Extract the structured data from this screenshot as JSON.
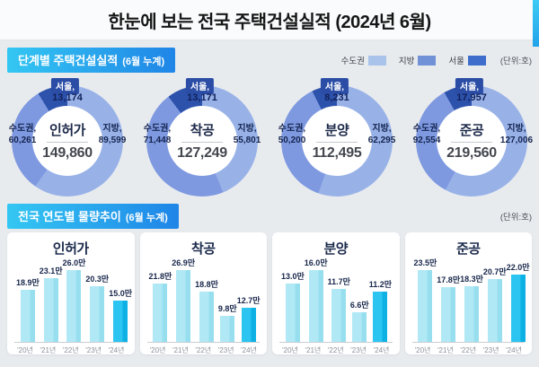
{
  "page_title": "한눈에 보는 전국 주택건설실적 (2024년 6월)",
  "section1": {
    "badge": "단계별 주택건설실적",
    "badge_suffix": "(6월 누계)",
    "unit_note": "(단위:호)"
  },
  "section2": {
    "badge": "전국 연도별 물량추이",
    "badge_suffix": "(6월 누계)",
    "unit_note": "(단위:호)"
  },
  "legend": {
    "items": [
      {
        "label": "수도권",
        "color": "#a9c3ea"
      },
      {
        "label": "지방",
        "color": "#7192d6"
      },
      {
        "label": "서울",
        "color": "#3e6dcb"
      }
    ]
  },
  "colors": {
    "arc_jibang": "#98b2e8",
    "arc_sudogwon": "#7e99e0",
    "arc_seoul": "#2d52ab",
    "bar": "linear-gradient(90deg,#b0e9f5 0 66%,#97dfef 66% 100%)",
    "bar_highlight": "linear-gradient(90deg,#2cc4f0 0 66%,#0db1e4 66% 100%)"
  },
  "chart_data": [
    {
      "type": "pie",
      "title": "인허가",
      "total": 149860,
      "slices": [
        {
          "label": "서울",
          "value": 13174
        },
        {
          "label": "수도권",
          "value": 60261
        },
        {
          "label": "지방",
          "value": 89599
        }
      ]
    },
    {
      "type": "pie",
      "title": "착공",
      "total": 127249,
      "slices": [
        {
          "label": "서울",
          "value": 13171
        },
        {
          "label": "수도권",
          "value": 71448
        },
        {
          "label": "지방",
          "value": 55801
        }
      ]
    },
    {
      "type": "pie",
      "title": "분양",
      "total": 112495,
      "slices": [
        {
          "label": "서울",
          "value": 8231
        },
        {
          "label": "수도권",
          "value": 50200
        },
        {
          "label": "지방",
          "value": 62295
        }
      ]
    },
    {
      "type": "pie",
      "title": "준공",
      "total": 219560,
      "slices": [
        {
          "label": "서울",
          "value": 17957
        },
        {
          "label": "수도권",
          "value": 92554
        },
        {
          "label": "지방",
          "value": 127006
        }
      ]
    },
    {
      "type": "bar",
      "title": "인허가",
      "unit": "만",
      "highlight_index": 4,
      "categories": [
        "'20년",
        "'21년",
        "'22년",
        "'23년",
        "'24년"
      ],
      "values": [
        18.9,
        23.1,
        26.0,
        20.3,
        15.0
      ]
    },
    {
      "type": "bar",
      "title": "착공",
      "unit": "만",
      "highlight_index": 4,
      "categories": [
        "'20년",
        "'21년",
        "'22년",
        "'23년",
        "'24년"
      ],
      "values": [
        21.8,
        26.9,
        18.8,
        9.8,
        12.7
      ]
    },
    {
      "type": "bar",
      "title": "분양",
      "unit": "만",
      "highlight_index": 4,
      "categories": [
        "'20년",
        "'21년",
        "'22년",
        "'23년",
        "'24년"
      ],
      "values": [
        13.0,
        16.0,
        11.7,
        6.6,
        11.2
      ]
    },
    {
      "type": "bar",
      "title": "준공",
      "unit": "만",
      "highlight_index": 4,
      "categories": [
        "'20년",
        "'21년",
        "'22년",
        "'23년",
        "'24년"
      ],
      "values": [
        23.5,
        17.8,
        18.3,
        20.7,
        22.0
      ]
    }
  ]
}
